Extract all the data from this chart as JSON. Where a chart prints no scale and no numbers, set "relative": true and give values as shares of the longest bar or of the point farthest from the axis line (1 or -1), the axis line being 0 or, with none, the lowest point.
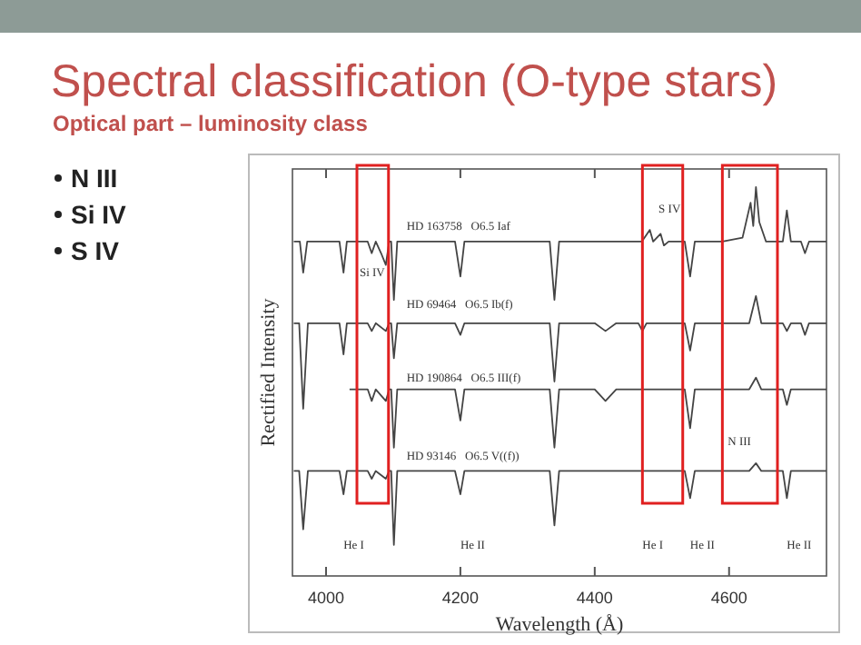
{
  "chart_data": {
    "type": "line",
    "title": "Spectral classification (O-type stars)",
    "subtitle": "Optical part – luminosity class",
    "xlabel": "Wavelength (Å)",
    "ylabel": "Rectified Intensity",
    "relative": true,
    "xlim": [
      3950,
      4745
    ],
    "xticks": [
      4000,
      4200,
      4400,
      4600
    ],
    "grid": false,
    "series": [
      {
        "color": "#444444",
        "x": [
          3952,
          3961,
          3966,
          3972,
          4020,
          4026,
          4031,
          4062,
          4068,
          4074,
          4082,
          4089,
          4094,
          4097,
          4101,
          4106,
          4192,
          4200,
          4206,
          4333,
          4340,
          4347,
          4470,
          4482,
          4487,
          4498,
          4503,
          4510,
          4534,
          4542,
          4549,
          4590,
          4620,
          4632,
          4636,
          4640,
          4645,
          4655,
          4680,
          4686,
          4692,
          4707,
          4713,
          4719,
          4745
        ],
        "values": [
          0.86,
          0.86,
          0.78,
          0.86,
          0.86,
          0.78,
          0.86,
          0.86,
          0.83,
          0.86,
          0.83,
          0.8,
          0.86,
          0.86,
          0.71,
          0.86,
          0.86,
          0.77,
          0.86,
          0.86,
          0.71,
          0.86,
          0.86,
          0.89,
          0.86,
          0.88,
          0.85,
          0.86,
          0.86,
          0.77,
          0.86,
          0.86,
          0.87,
          0.96,
          0.9,
          1,
          0.91,
          0.86,
          0.86,
          0.94,
          0.86,
          0.86,
          0.83,
          0.86,
          0.86
        ]
      },
      {
        "color": "#444444",
        "x": [
          3952,
          3960,
          3966,
          3973,
          4020,
          4026,
          4031,
          4062,
          4068,
          4074,
          4089,
          4094,
          4097,
          4101,
          4106,
          4192,
          4200,
          4206,
          4333,
          4340,
          4347,
          4400,
          4416,
          4432,
          4465,
          4471,
          4477,
          4534,
          4542,
          4549,
          4630,
          4640,
          4648,
          4680,
          4686,
          4692,
          4707,
          4713,
          4719,
          4745
        ],
        "values": [
          0.65,
          0.65,
          0.43,
          0.65,
          0.65,
          0.57,
          0.65,
          0.65,
          0.63,
          0.65,
          0.63,
          0.65,
          0.65,
          0.56,
          0.65,
          0.65,
          0.62,
          0.65,
          0.65,
          0.5,
          0.65,
          0.65,
          0.63,
          0.65,
          0.65,
          0.63,
          0.65,
          0.65,
          0.58,
          0.65,
          0.65,
          0.72,
          0.65,
          0.65,
          0.63,
          0.65,
          0.65,
          0.62,
          0.65,
          0.65
        ]
      },
      {
        "color": "#444444",
        "x": [
          4035,
          4062,
          4068,
          4074,
          4089,
          4094,
          4097,
          4101,
          4106,
          4192,
          4200,
          4206,
          4333,
          4340,
          4347,
          4400,
          4416,
          4432,
          4534,
          4542,
          4549,
          4630,
          4640,
          4648,
          4680,
          4686,
          4692,
          4745
        ],
        "values": [
          0.48,
          0.48,
          0.45,
          0.48,
          0.45,
          0.48,
          0.48,
          0.33,
          0.48,
          0.48,
          0.4,
          0.48,
          0.48,
          0.33,
          0.48,
          0.48,
          0.45,
          0.48,
          0.48,
          0.38,
          0.48,
          0.48,
          0.51,
          0.48,
          0.48,
          0.44,
          0.48,
          0.48
        ]
      },
      {
        "color": "#444444",
        "x": [
          3952,
          3960,
          3966,
          3973,
          4020,
          4026,
          4031,
          4062,
          4068,
          4074,
          4089,
          4094,
          4097,
          4101,
          4106,
          4192,
          4200,
          4206,
          4333,
          4340,
          4347,
          4534,
          4542,
          4549,
          4630,
          4640,
          4648,
          4680,
          4686,
          4692,
          4745
        ],
        "values": [
          0.27,
          0.27,
          0.12,
          0.27,
          0.27,
          0.21,
          0.27,
          0.27,
          0.25,
          0.27,
          0.25,
          0.27,
          0.27,
          0.08,
          0.27,
          0.27,
          0.21,
          0.27,
          0.27,
          0.13,
          0.27,
          0.27,
          0.2,
          0.27,
          0.27,
          0.29,
          0.27,
          0.27,
          0.2,
          0.27,
          0.27
        ]
      }
    ],
    "annotations": [
      "N III",
      "Si IV",
      "S IV",
      "HD 163758   O6.5 Iaf",
      "HD 69464   O6.5 Ib(f)",
      "HD 190864   O6.5 III(f)",
      "HD 93146   O6.5 V((f))",
      "Si IV",
      "S IV",
      "N III",
      "He I",
      "He II",
      "He I",
      "He II",
      "He II"
    ]
  }
}
